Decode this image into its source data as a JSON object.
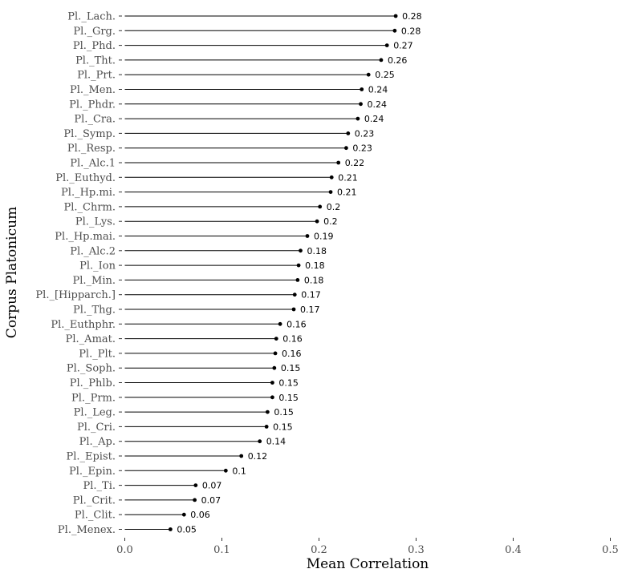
{
  "chart_data": {
    "type": "lollipop",
    "xlabel": "Mean Correlation",
    "ylabel": "Corpus Platonicum",
    "xlim": [
      0,
      0.5
    ],
    "xticks": [
      0.0,
      0.1,
      0.2,
      0.3,
      0.4,
      0.5
    ],
    "xtick_labels": [
      "0.0",
      "0.1",
      "0.2",
      "0.3",
      "0.4",
      "0.5"
    ],
    "grid": false,
    "categories": [
      "Pl._Lach.",
      "Pl._Grg.",
      "Pl._Phd.",
      "Pl._Tht.",
      "Pl._Prt.",
      "Pl._Men.",
      "Pl._Phdr.",
      "Pl._Cra.",
      "Pl._Symp.",
      "Pl._Resp.",
      "Pl._Alc.1",
      "Pl._Euthyd.",
      "Pl._Hp.mi.",
      "Pl._Chrm.",
      "Pl._Lys.",
      "Pl._Hp.mai.",
      "Pl._Alc.2",
      "Pl._Ion",
      "Pl._Min.",
      "Pl._[Hipparch.]",
      "Pl._Thg.",
      "Pl._Euthphr.",
      "Pl._Amat.",
      "Pl._Plt.",
      "Pl._Soph.",
      "Pl._Phlb.",
      "Pl._Prm.",
      "Pl._Leg.",
      "Pl._Cri.",
      "Pl._Ap.",
      "Pl._Epist.",
      "Pl._Epin.",
      "Pl._Ti.",
      "Pl._Crit.",
      "Pl._Clit.",
      "Pl._Menex."
    ],
    "values": [
      0.279,
      0.278,
      0.27,
      0.264,
      0.251,
      0.244,
      0.243,
      0.24,
      0.23,
      0.228,
      0.22,
      0.213,
      0.212,
      0.201,
      0.198,
      0.188,
      0.181,
      0.179,
      0.178,
      0.175,
      0.174,
      0.16,
      0.156,
      0.155,
      0.154,
      0.152,
      0.152,
      0.147,
      0.146,
      0.139,
      0.12,
      0.104,
      0.073,
      0.072,
      0.061,
      0.047
    ],
    "value_labels": [
      "0.28",
      "0.28",
      "0.27",
      "0.26",
      "0.25",
      "0.24",
      "0.24",
      "0.24",
      "0.23",
      "0.23",
      "0.22",
      "0.21",
      "0.21",
      "0.2",
      "0.2",
      "0.19",
      "0.18",
      "0.18",
      "0.18",
      "0.17",
      "0.17",
      "0.16",
      "0.16",
      "0.16",
      "0.15",
      "0.15",
      "0.15",
      "0.15",
      "0.15",
      "0.14",
      "0.12",
      "0.1",
      "0.07",
      "0.07",
      "0.06",
      "0.05"
    ]
  }
}
